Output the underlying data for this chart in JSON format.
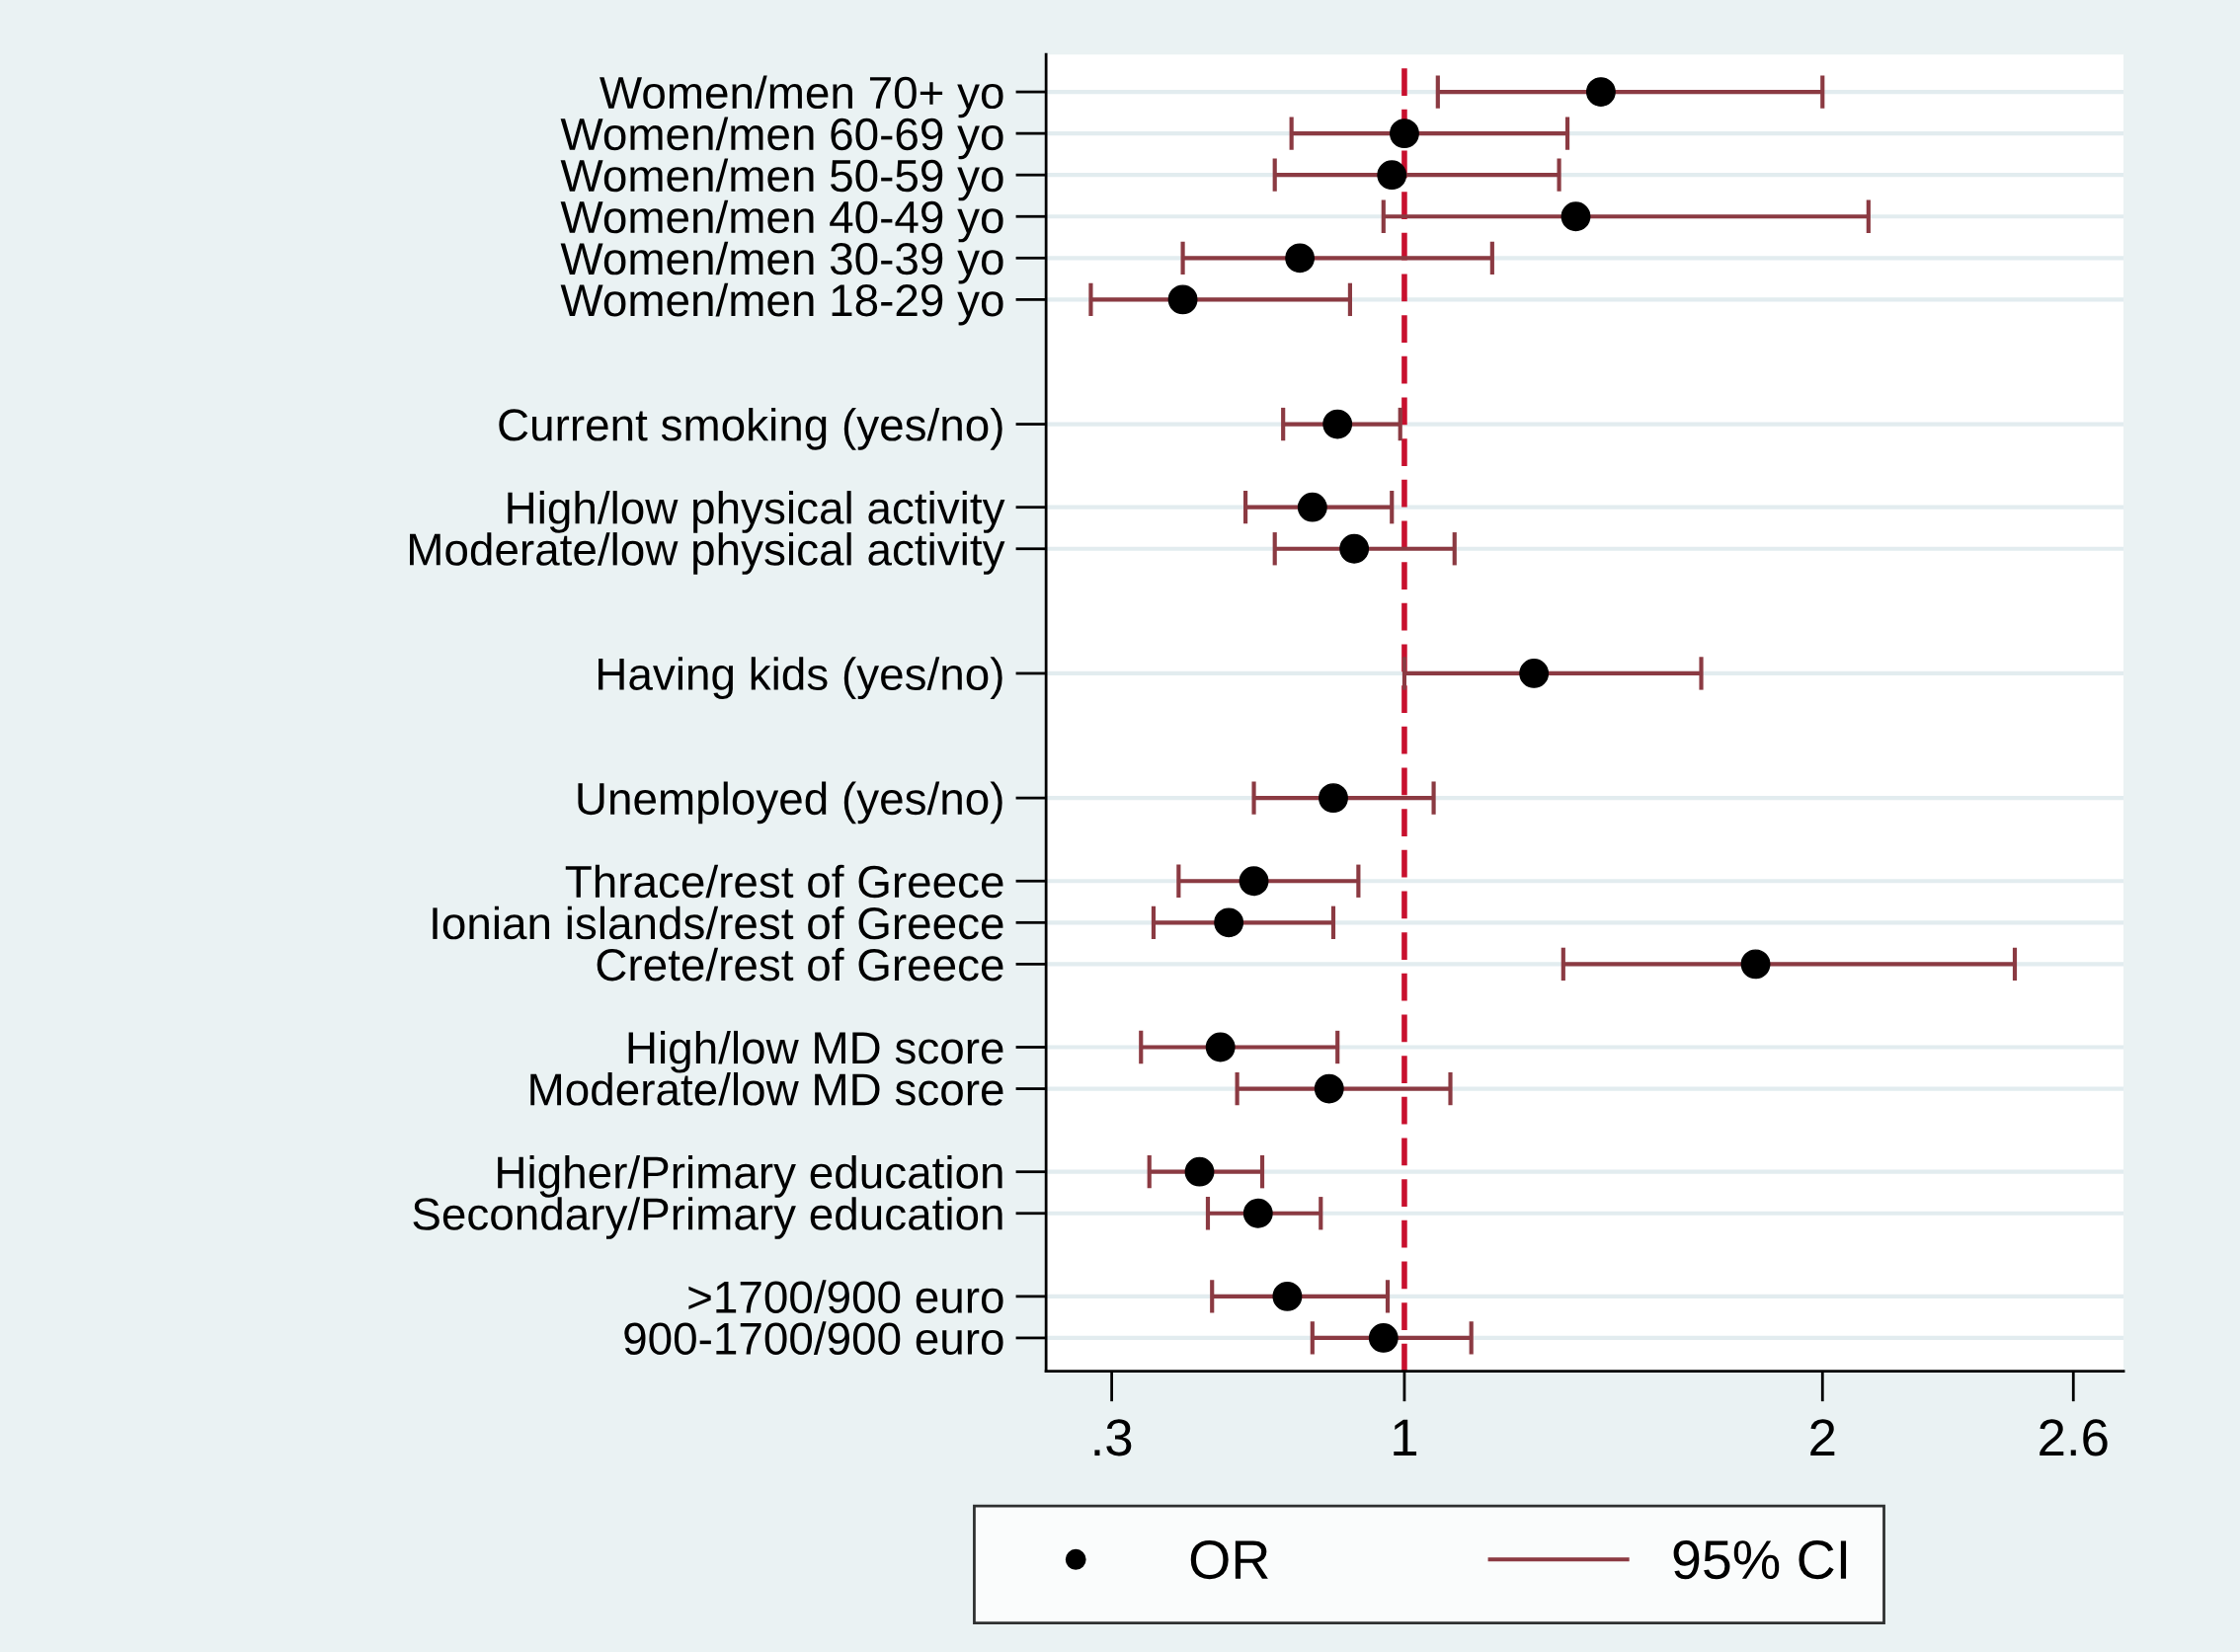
{
  "chart_data": {
    "type": "scatter",
    "orientation": "horizontal",
    "categories": [
      "Women/men 70+ yo",
      "Women/men 60-69 yo",
      "Women/men 50-59 yo",
      "Women/men 40-49 yo",
      "Women/men 30-39 yo",
      "Women/men 18-29 yo",
      null,
      null,
      "Current smoking (yes/no)",
      null,
      "High/low physical activity",
      "Moderate/low physical activity",
      null,
      null,
      "Having kids (yes/no)",
      null,
      null,
      "Unemployed (yes/no)",
      null,
      "Thrace/rest of Greece",
      "Ionian islands/rest of Greece",
      "Crete/rest of Greece",
      null,
      "High/low MD score",
      "Moderate/low MD score",
      null,
      "Higher/Primary education",
      "Secondary/Primary education",
      null,
      ">1700/900 euro",
      "900-1700/900 euro"
    ],
    "series": [
      {
        "name": "OR",
        "color": "#000000",
        "marker": "circle",
        "values": [
          1.47,
          1.0,
          0.97,
          1.41,
          0.75,
          0.47,
          null,
          null,
          0.84,
          null,
          0.78,
          0.88,
          null,
          null,
          1.31,
          null,
          null,
          0.83,
          null,
          0.64,
          0.58,
          1.84,
          null,
          0.56,
          0.82,
          null,
          0.51,
          0.65,
          null,
          0.72,
          0.95
        ],
        "errors": [
          [
            1.08,
            2.0
          ],
          [
            0.73,
            1.39
          ],
          [
            0.69,
            1.37
          ],
          [
            0.95,
            2.11
          ],
          [
            0.47,
            1.21
          ],
          [
            0.25,
            0.87
          ],
          null,
          null,
          [
            0.71,
            0.99
          ],
          null,
          [
            0.62,
            0.97
          ],
          [
            0.69,
            1.12
          ],
          null,
          null,
          [
            1.0,
            1.71
          ],
          null,
          null,
          [
            0.64,
            1.07
          ],
          null,
          [
            0.46,
            0.89
          ],
          [
            0.4,
            0.83
          ],
          [
            1.38,
            2.46
          ],
          null,
          [
            0.37,
            0.84
          ],
          [
            0.6,
            1.11
          ],
          null,
          [
            0.39,
            0.66
          ],
          [
            0.53,
            0.8
          ],
          null,
          [
            0.54,
            0.96
          ],
          [
            0.78,
            1.16
          ]
        ]
      }
    ],
    "annotations": [
      "95% CI"
    ],
    "xlim": [
      0.143,
      2.72
    ],
    "xticks": [
      {
        "value": 0.3,
        "label": ".3"
      },
      1,
      2,
      2.6
    ],
    "ref_lines": [
      {
        "axis": "x",
        "value": 1,
        "color": "#c8102e",
        "line_style": "dashed"
      }
    ],
    "grid": "y",
    "legend": "bottom"
  }
}
